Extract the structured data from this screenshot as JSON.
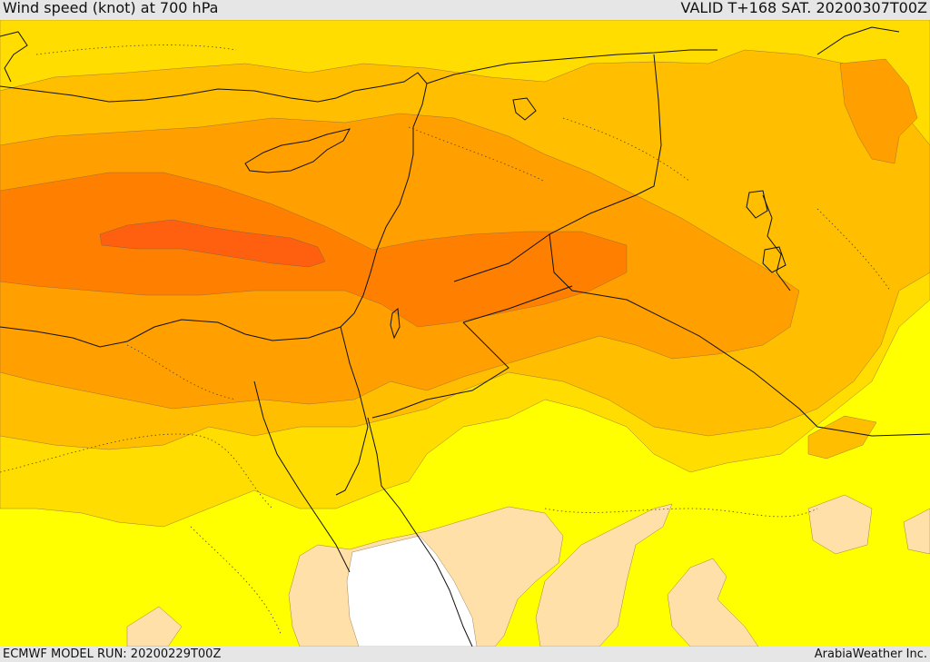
{
  "header": {
    "title": "Wind speed (knot) at 700 hPa",
    "valid_time": "VALID T+168 SAT. 20200307T00Z"
  },
  "footer": {
    "model_run": "ECMWF MODEL RUN: 20200229T00Z",
    "credit": "ArabiaWeather Inc."
  },
  "legend_colors": {
    "very_low": "#ffffff",
    "low": "#ffe0a8",
    "moderate_low": "#ffff00",
    "moderate": "#ffdd00",
    "moderate_high": "#ffbe00",
    "high": "#ff9f00",
    "very_high": "#ff8000",
    "peak": "#ff6010"
  }
}
